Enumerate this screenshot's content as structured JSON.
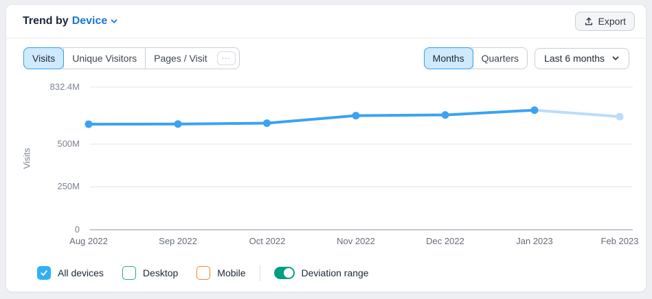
{
  "header": {
    "title_prefix": "Trend by",
    "title_selector": "Device",
    "export_label": "Export"
  },
  "metric_tabs": {
    "items": [
      {
        "label": "Visits",
        "active": true
      },
      {
        "label": "Unique Visitors",
        "active": false
      },
      {
        "label": "Pages / Visit",
        "active": false
      }
    ],
    "more_label": "..."
  },
  "period_tabs": {
    "items": [
      {
        "label": "Months",
        "active": true
      },
      {
        "label": "Quarters",
        "active": false
      }
    ]
  },
  "range_dropdown": {
    "value": "Last 6 months"
  },
  "chart_data": {
    "type": "line",
    "title": "Trend by Device — Visits",
    "x": [
      "Aug 2022",
      "Sep 2022",
      "Oct 2022",
      "Nov 2022",
      "Dec 2022",
      "Jan 2023",
      "Feb 2023"
    ],
    "series": [
      {
        "name": "All devices",
        "values_millions": [
          616,
          617,
          622,
          666,
          670,
          698,
          660
        ],
        "last_point_partial": true
      }
    ],
    "ylabel": "Visits",
    "xlabel": "",
    "y_ticks": [
      "832.4M",
      "500M",
      "250M",
      "0"
    ],
    "y_tick_values_millions": [
      832.4,
      500,
      250,
      0
    ],
    "ylim_millions": [
      0,
      832.4
    ],
    "grid": "horizontal",
    "legend_position": "bottom"
  },
  "legend": {
    "items": [
      {
        "label": "All devices",
        "checked": true,
        "color": "#2fb1f3"
      },
      {
        "label": "Desktop",
        "checked": false,
        "color": "#1fa98c"
      },
      {
        "label": "Mobile",
        "checked": false,
        "color": "#f5862b"
      }
    ],
    "toggle": {
      "label": "Deviation range",
      "on": true,
      "color": "#009f81"
    }
  },
  "colors": {
    "accent_blue": "#1976d2",
    "line": "#3aa3f2",
    "line_forecast": "#b9ddfa",
    "grid": "#e9ebef",
    "axis_zero": "#c2c7cf",
    "active_tab_bg": "#cfe9fd",
    "active_tab_border": "#2f9ff0"
  }
}
